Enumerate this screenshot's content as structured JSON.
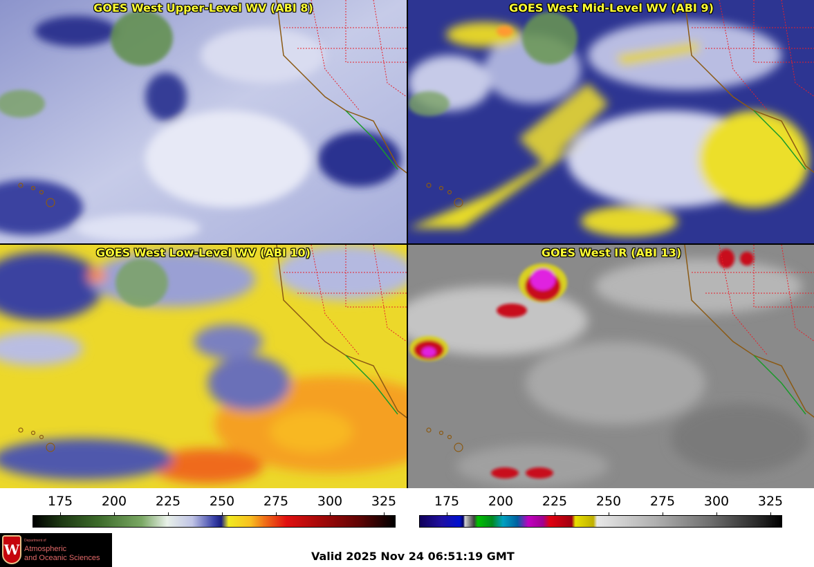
{
  "panels": [
    {
      "title": "GOES West Upper-Level WV (ABI 8)"
    },
    {
      "title": "GOES West Mid-Level WV (ABI 9)"
    },
    {
      "title": "GOES West Low-Level WV (ABI 10)"
    },
    {
      "title": "GOES West IR (ABI 13)"
    }
  ],
  "colorbars": [
    {
      "ticks": [
        "175",
        "200",
        "225",
        "250",
        "275",
        "300",
        "325"
      ]
    },
    {
      "ticks": [
        "175",
        "200",
        "225",
        "250",
        "275",
        "300",
        "325"
      ]
    }
  ],
  "logo": {
    "line_small": "Department of",
    "line1": "Atmospheric",
    "line2": "and Oceanic Sciences",
    "seal_letter": "W"
  },
  "valid_time": "Valid 2025 Nov 24 06:51:19 GMT"
}
